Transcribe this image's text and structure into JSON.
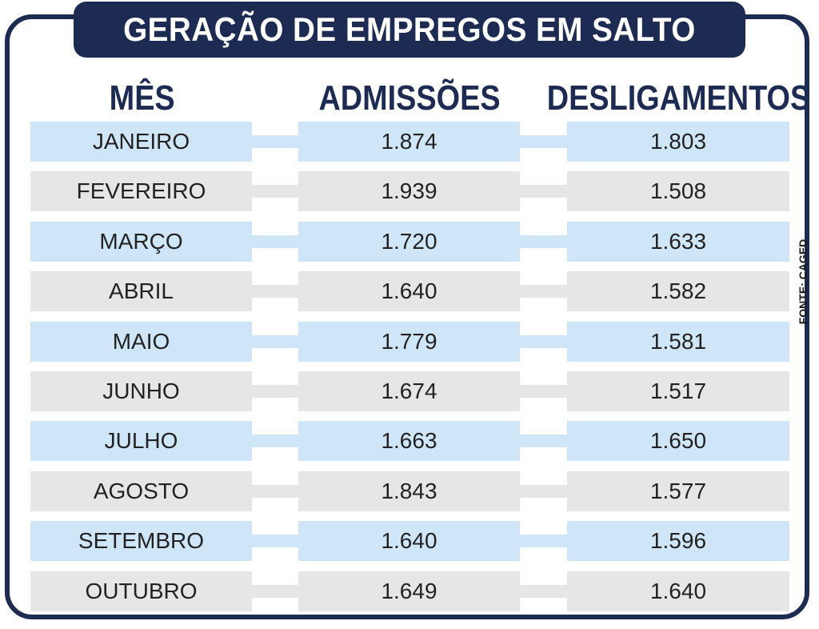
{
  "title": "GERAÇÃO DE EMPREGOS EM SALTO",
  "source": "FONTE: CAGED",
  "colors": {
    "navy": "#1d2b52",
    "row_blue": "#cfe6f8",
    "row_gray": "#e6e6e6"
  },
  "headers": [
    "MÊS",
    "ADMISSÕES",
    "DESLIGAMENTOS"
  ],
  "chart_data": {
    "type": "table",
    "title": "GERAÇÃO DE EMPREGOS EM SALTO",
    "columns": [
      "MÊS",
      "ADMISSÕES",
      "DESLIGAMENTOS"
    ],
    "rows": [
      [
        "JANEIRO",
        "1.874",
        "1.803"
      ],
      [
        "FEVEREIRO",
        "1.939",
        "1.508"
      ],
      [
        "MARÇO",
        "1.720",
        "1.633"
      ],
      [
        "ABRIL",
        "1.640",
        "1.582"
      ],
      [
        "MAIO",
        "1.779",
        "1.581"
      ],
      [
        "JUNHO",
        "1.674",
        "1.517"
      ],
      [
        "JULHO",
        "1.663",
        "1.650"
      ],
      [
        "AGOSTO",
        "1.843",
        "1.577"
      ],
      [
        "SETEMBRO",
        "1.640",
        "1.596"
      ],
      [
        "OUTUBRO",
        "1.649",
        "1.640"
      ]
    ]
  }
}
